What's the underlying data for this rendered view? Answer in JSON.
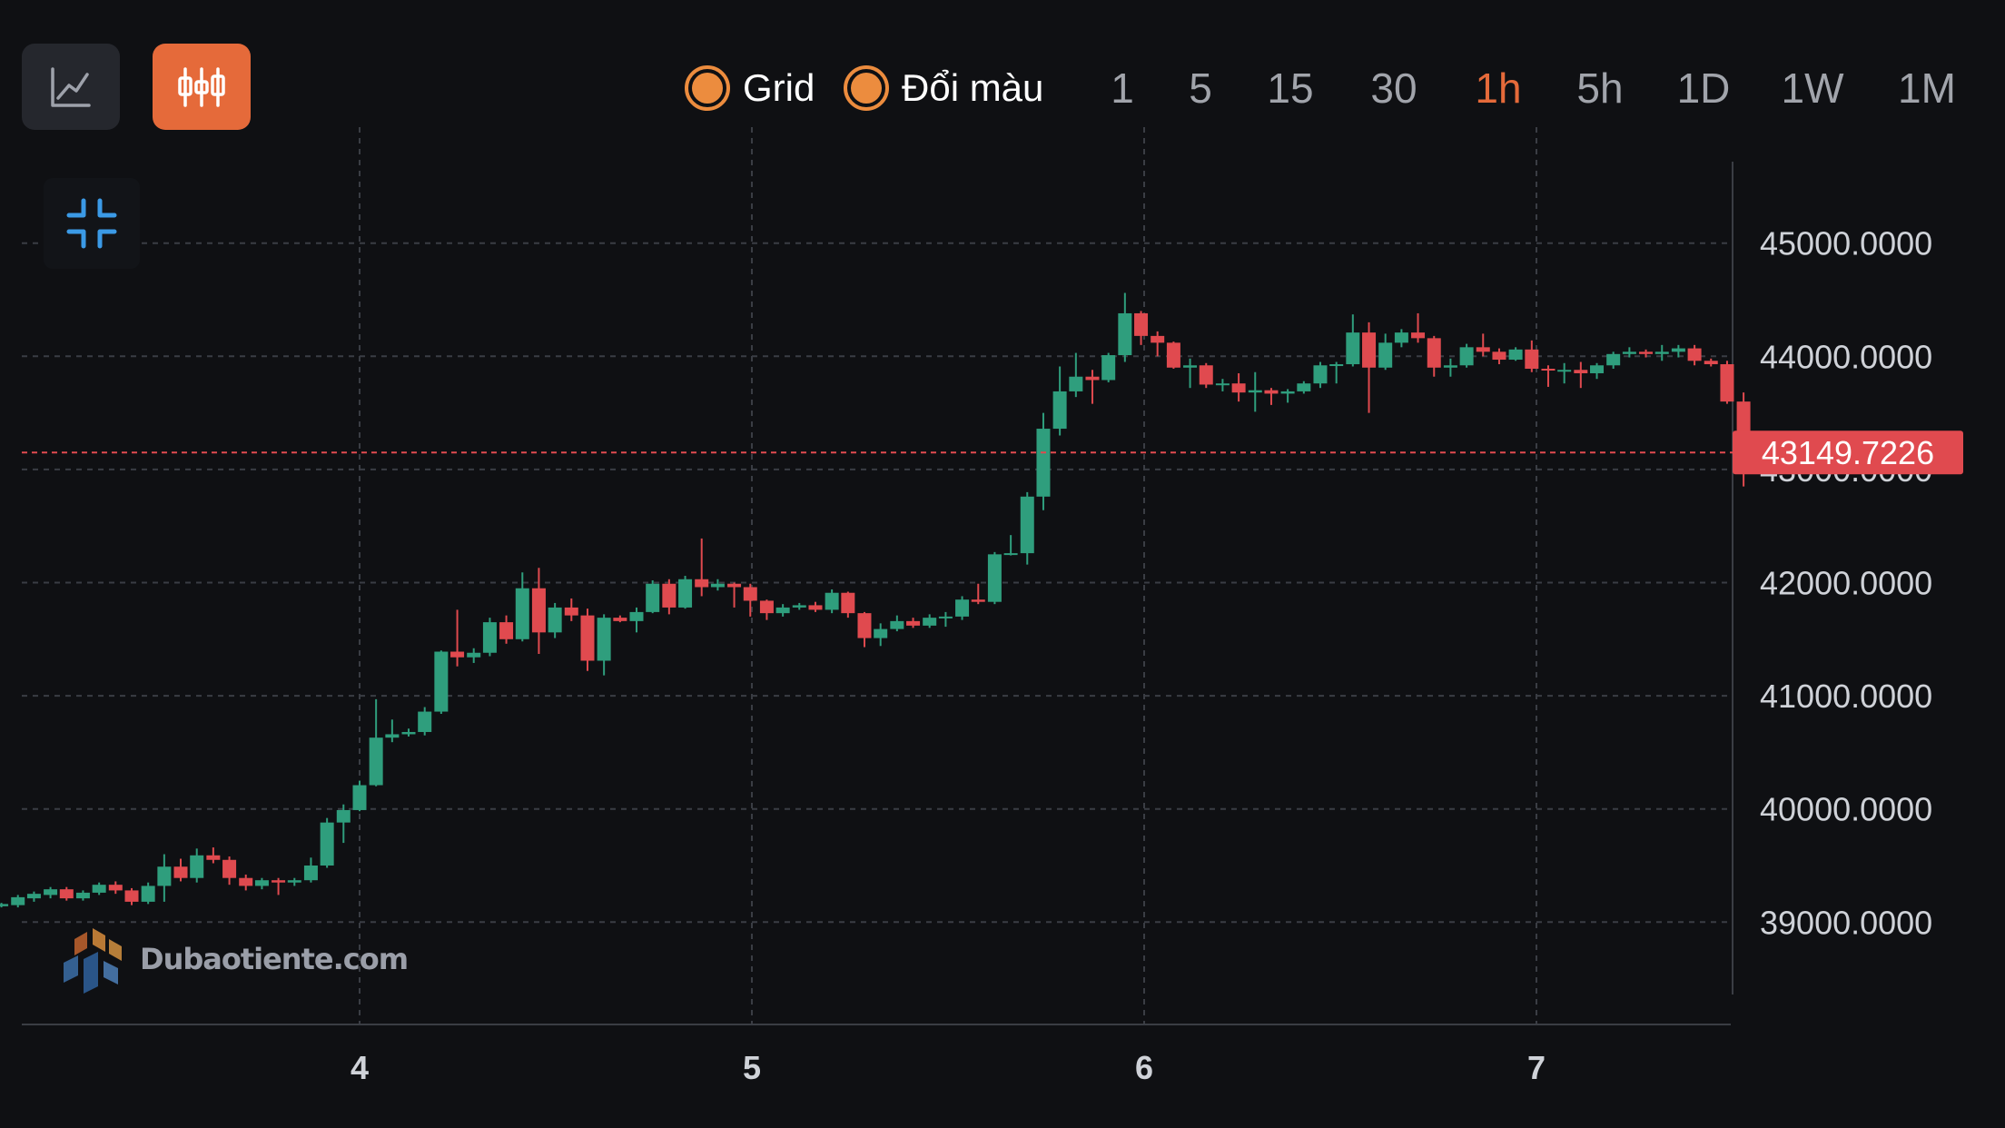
{
  "toolbar": {
    "chart_types": [
      {
        "name": "line-chart",
        "icon": "line-chart-icon",
        "active": false
      },
      {
        "name": "candlestick-chart",
        "icon": "candlestick-icon",
        "active": true
      }
    ],
    "options": [
      {
        "label": "Grid",
        "checked": true
      },
      {
        "label": "Đổi màu",
        "checked": true
      }
    ],
    "timeframes": [
      "1",
      "5",
      "15",
      "30",
      "1h",
      "5h",
      "1D",
      "1W",
      "1M"
    ],
    "active_timeframe": "1h",
    "accent_color": "#e56a3a"
  },
  "collapse_icon": "collapse-icon",
  "watermark": {
    "text": "Dubaotiente.com",
    "icon": "dubaotiente-logo"
  },
  "price_tag": {
    "text": "43149.7226",
    "color": "#e04a4f"
  },
  "chart_data": {
    "type": "candlestick",
    "up_color": "#2f9e7d",
    "down_color": "#e04a4f",
    "grid": true,
    "current_price": 43149.7226,
    "y_ticks": [
      45000,
      44000,
      43000,
      42000,
      41000,
      40000,
      39000
    ],
    "y_tick_labels": [
      "45000.0000",
      "44000.0000",
      "43000.0000",
      "42000.0000",
      "41000.0000",
      "40000.0000",
      "39000.0000"
    ],
    "ylim": [
      38500,
      45700
    ],
    "x_ticks": [
      4,
      5,
      6,
      7
    ],
    "x_tick_labels": [
      "4",
      "5",
      "6",
      "7"
    ],
    "xlim": [
      3.085,
      7.5
    ],
    "candles": [
      [
        3.087,
        39140,
        39160,
        39130,
        39170
      ],
      [
        3.129,
        39150,
        39220,
        39130,
        39240
      ],
      [
        3.17,
        39210,
        39250,
        39180,
        39270
      ],
      [
        3.212,
        39240,
        39290,
        39210,
        39310
      ],
      [
        3.253,
        39290,
        39210,
        39190,
        39310
      ],
      [
        3.295,
        39210,
        39260,
        39190,
        39280
      ],
      [
        3.336,
        39260,
        39330,
        39240,
        39350
      ],
      [
        3.378,
        39330,
        39280,
        39250,
        39360
      ],
      [
        3.419,
        39280,
        39180,
        39150,
        39300
      ],
      [
        3.461,
        39180,
        39320,
        39160,
        39350
      ],
      [
        3.502,
        39320,
        39490,
        39180,
        39600
      ],
      [
        3.544,
        39490,
        39390,
        39360,
        39560
      ],
      [
        3.585,
        39390,
        39590,
        39350,
        39650
      ],
      [
        3.627,
        39590,
        39550,
        39520,
        39660
      ],
      [
        3.668,
        39550,
        39390,
        39330,
        39580
      ],
      [
        3.71,
        39390,
        39320,
        39280,
        39420
      ],
      [
        3.751,
        39320,
        39370,
        39290,
        39390
      ],
      [
        3.793,
        39370,
        39350,
        39240,
        39390
      ],
      [
        3.834,
        39350,
        39370,
        39320,
        39390
      ],
      [
        3.876,
        39370,
        39500,
        39350,
        39570
      ],
      [
        3.917,
        39500,
        39880,
        39480,
        39920
      ],
      [
        3.959,
        39880,
        39990,
        39700,
        40040
      ],
      [
        4.0,
        39990,
        40210,
        39980,
        40250
      ],
      [
        4.042,
        40210,
        40630,
        40200,
        40970
      ],
      [
        4.083,
        40630,
        40660,
        40590,
        40790
      ],
      [
        4.125,
        40660,
        40680,
        40640,
        40710
      ],
      [
        4.166,
        40680,
        40860,
        40650,
        40900
      ],
      [
        4.208,
        40860,
        41390,
        40840,
        41400
      ],
      [
        4.249,
        41390,
        41340,
        41260,
        41760
      ],
      [
        4.291,
        41340,
        41380,
        41290,
        41420
      ],
      [
        4.332,
        41380,
        41650,
        41350,
        41690
      ],
      [
        4.374,
        41650,
        41500,
        41460,
        41710
      ],
      [
        4.415,
        41500,
        41950,
        41480,
        42090
      ],
      [
        4.457,
        41950,
        41560,
        41370,
        42130
      ],
      [
        4.498,
        41560,
        41780,
        41510,
        41820
      ],
      [
        4.54,
        41780,
        41710,
        41660,
        41860
      ],
      [
        4.581,
        41710,
        41310,
        41220,
        41770
      ],
      [
        4.623,
        41310,
        41690,
        41180,
        41720
      ],
      [
        4.664,
        41690,
        41660,
        41650,
        41710
      ],
      [
        4.706,
        41660,
        41740,
        41560,
        41780
      ],
      [
        4.747,
        41740,
        41990,
        41730,
        42020
      ],
      [
        4.789,
        41990,
        41780,
        41720,
        42030
      ],
      [
        4.83,
        41780,
        42030,
        41770,
        42060
      ],
      [
        4.872,
        42030,
        41960,
        41880,
        42390
      ],
      [
        4.913,
        41960,
        41990,
        41930,
        42030
      ],
      [
        4.955,
        41990,
        41960,
        41780,
        42000
      ],
      [
        4.996,
        41960,
        41840,
        41700,
        41990
      ],
      [
        5.038,
        41840,
        41730,
        41670,
        41850
      ],
      [
        5.079,
        41730,
        41780,
        41700,
        41810
      ],
      [
        5.121,
        41780,
        41800,
        41760,
        41820
      ],
      [
        5.162,
        41800,
        41760,
        41740,
        41830
      ],
      [
        5.204,
        41760,
        41910,
        41730,
        41940
      ],
      [
        5.245,
        41910,
        41730,
        41690,
        41920
      ],
      [
        5.287,
        41730,
        41510,
        41430,
        41740
      ],
      [
        5.328,
        41510,
        41590,
        41440,
        41640
      ],
      [
        5.37,
        41590,
        41660,
        41570,
        41710
      ],
      [
        5.411,
        41660,
        41620,
        41600,
        41690
      ],
      [
        5.453,
        41620,
        41690,
        41600,
        41720
      ],
      [
        5.494,
        41690,
        41700,
        41610,
        41740
      ],
      [
        5.536,
        41700,
        41850,
        41670,
        41880
      ],
      [
        5.577,
        41850,
        41830,
        41810,
        41990
      ],
      [
        5.619,
        41830,
        42250,
        41810,
        42270
      ],
      [
        5.66,
        42250,
        42260,
        42240,
        42420
      ],
      [
        5.702,
        42260,
        42760,
        42160,
        42800
      ],
      [
        5.743,
        42760,
        43360,
        42640,
        43500
      ],
      [
        5.785,
        43360,
        43690,
        43300,
        43910
      ],
      [
        5.826,
        43690,
        43820,
        43640,
        44030
      ],
      [
        5.868,
        43820,
        43790,
        43580,
        43880
      ],
      [
        5.909,
        43790,
        44010,
        43770,
        44030
      ],
      [
        5.951,
        44010,
        44380,
        43950,
        44560
      ],
      [
        5.992,
        44380,
        44180,
        44100,
        44400
      ],
      [
        6.034,
        44180,
        44120,
        44000,
        44220
      ],
      [
        6.075,
        44120,
        43900,
        43890,
        44130
      ],
      [
        6.117,
        43900,
        43920,
        43720,
        43980
      ],
      [
        6.158,
        43920,
        43750,
        43720,
        43940
      ],
      [
        6.2,
        43750,
        43760,
        43690,
        43800
      ],
      [
        6.241,
        43760,
        43680,
        43600,
        43850
      ],
      [
        6.283,
        43680,
        43700,
        43510,
        43860
      ],
      [
        6.324,
        43700,
        43670,
        43570,
        43720
      ],
      [
        6.366,
        43670,
        43690,
        43590,
        43710
      ],
      [
        6.407,
        43690,
        43760,
        43670,
        43780
      ],
      [
        6.449,
        43760,
        43920,
        43720,
        43950
      ],
      [
        6.49,
        43920,
        43930,
        43760,
        43950
      ],
      [
        6.532,
        43930,
        44210,
        43910,
        44370
      ],
      [
        6.573,
        44210,
        43900,
        43500,
        44300
      ],
      [
        6.615,
        43900,
        44120,
        43880,
        44200
      ],
      [
        6.656,
        44120,
        44210,
        44080,
        44240
      ],
      [
        6.698,
        44210,
        44160,
        44120,
        44380
      ],
      [
        6.739,
        44160,
        43900,
        43820,
        44180
      ],
      [
        6.781,
        43900,
        43920,
        43820,
        43980
      ],
      [
        6.822,
        43920,
        44080,
        43900,
        44110
      ],
      [
        6.864,
        44080,
        44040,
        44000,
        44200
      ],
      [
        6.905,
        44040,
        43970,
        43930,
        44070
      ],
      [
        6.947,
        43970,
        44060,
        43960,
        44080
      ],
      [
        6.988,
        44060,
        43890,
        43860,
        44140
      ],
      [
        7.03,
        43890,
        43880,
        43730,
        43920
      ],
      [
        7.071,
        43880,
        43880,
        43760,
        43940
      ],
      [
        7.113,
        43880,
        43850,
        43720,
        43950
      ],
      [
        7.154,
        43850,
        43920,
        43800,
        43940
      ],
      [
        7.196,
        43920,
        44020,
        43890,
        44040
      ],
      [
        7.237,
        44020,
        44040,
        43990,
        44080
      ],
      [
        7.279,
        44040,
        44020,
        43990,
        44060
      ],
      [
        7.32,
        44020,
        44040,
        43960,
        44100
      ],
      [
        7.362,
        44040,
        44070,
        43990,
        44100
      ],
      [
        7.403,
        44070,
        43960,
        43920,
        44100
      ],
      [
        7.445,
        43960,
        43930,
        43910,
        43980
      ],
      [
        7.486,
        43930,
        43600,
        43580,
        43960
      ],
      [
        7.528,
        43600,
        43149.7226,
        42850,
        43680
      ]
    ]
  }
}
